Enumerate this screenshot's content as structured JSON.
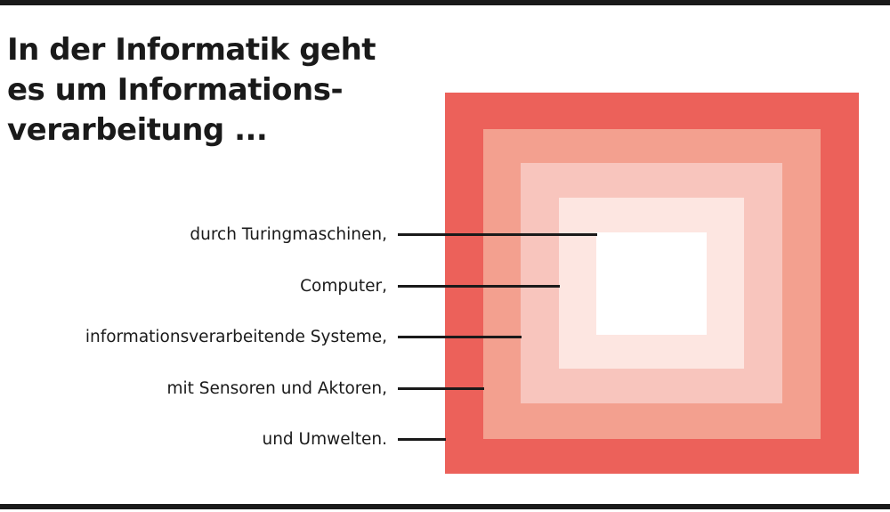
{
  "headline": {
    "line1": "In der Informatik geht",
    "line2": "es um Informations-",
    "line3": "verarbeitung ..."
  },
  "layers": [
    {
      "label": "durch Turingmaschinen,",
      "color": "#ffffff"
    },
    {
      "label": "Computer,",
      "color": "#fde6e1"
    },
    {
      "label": "informationsverarbeitende Systeme,",
      "color": "#f8c5bd"
    },
    {
      "label": "mit Sensoren und Aktoren,",
      "color": "#f3a08f"
    },
    {
      "label": "und Umwelten.",
      "color": "#ec615a"
    }
  ]
}
